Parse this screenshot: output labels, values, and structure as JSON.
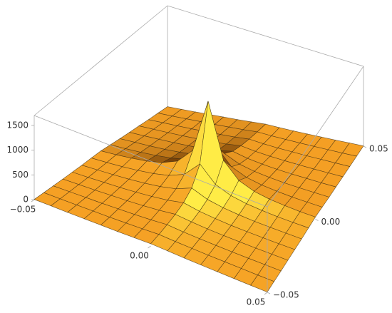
{
  "chart_data": {
    "type": "surface3d",
    "xlim": [
      -0.05,
      0.05
    ],
    "ylim": [
      -0.05,
      0.05
    ],
    "zlim": [
      0,
      1700
    ],
    "xticks": [
      {
        "value": -0.05,
        "label": "−0.05"
      },
      {
        "value": 0,
        "label": "0.00"
      },
      {
        "value": 0.05,
        "label": "0.05"
      }
    ],
    "yticks": [
      {
        "value": -0.05,
        "label": "−0.05"
      },
      {
        "value": 0,
        "label": "0.00"
      },
      {
        "value": 0.05,
        "label": "0.05"
      }
    ],
    "zticks": [
      0,
      500,
      1000,
      1500
    ],
    "color": "#f5a024",
    "z": [
      [
        5,
        8,
        10,
        15,
        20,
        25,
        35,
        45,
        35,
        25,
        20,
        15,
        10,
        8,
        5
      ],
      [
        8,
        10,
        15,
        20,
        25,
        35,
        45,
        60,
        45,
        35,
        25,
        20,
        15,
        10,
        8
      ],
      [
        10,
        15,
        20,
        25,
        35,
        45,
        60,
        85,
        60,
        45,
        35,
        25,
        20,
        15,
        10
      ],
      [
        15,
        20,
        25,
        35,
        45,
        60,
        85,
        120,
        85,
        60,
        45,
        35,
        25,
        20,
        15
      ],
      [
        20,
        25,
        35,
        45,
        60,
        85,
        120,
        180,
        120,
        85,
        60,
        45,
        35,
        25,
        20
      ],
      [
        25,
        35,
        45,
        60,
        85,
        120,
        180,
        300,
        180,
        120,
        85,
        60,
        45,
        35,
        25
      ],
      [
        35,
        45,
        60,
        85,
        120,
        180,
        300,
        600,
        300,
        180,
        120,
        85,
        60,
        45,
        35
      ],
      [
        45,
        60,
        85,
        120,
        180,
        300,
        600,
        1650,
        600,
        300,
        180,
        120,
        85,
        60,
        45
      ],
      [
        35,
        45,
        60,
        85,
        120,
        180,
        300,
        600,
        300,
        180,
        120,
        85,
        60,
        45,
        35
      ],
      [
        25,
        35,
        45,
        60,
        85,
        120,
        180,
        300,
        180,
        120,
        85,
        60,
        45,
        35,
        25
      ],
      [
        20,
        25,
        35,
        45,
        60,
        85,
        120,
        180,
        120,
        85,
        60,
        45,
        35,
        25,
        20
      ],
      [
        15,
        20,
        25,
        35,
        45,
        60,
        85,
        120,
        85,
        60,
        45,
        35,
        25,
        20,
        15
      ],
      [
        10,
        15,
        20,
        25,
        35,
        45,
        60,
        85,
        60,
        45,
        35,
        25,
        20,
        15,
        10
      ],
      [
        8,
        10,
        15,
        20,
        25,
        35,
        45,
        60,
        45,
        35,
        25,
        20,
        15,
        10,
        8
      ],
      [
        5,
        8,
        10,
        15,
        20,
        25,
        35,
        45,
        35,
        25,
        20,
        15,
        10,
        8,
        5
      ]
    ]
  }
}
